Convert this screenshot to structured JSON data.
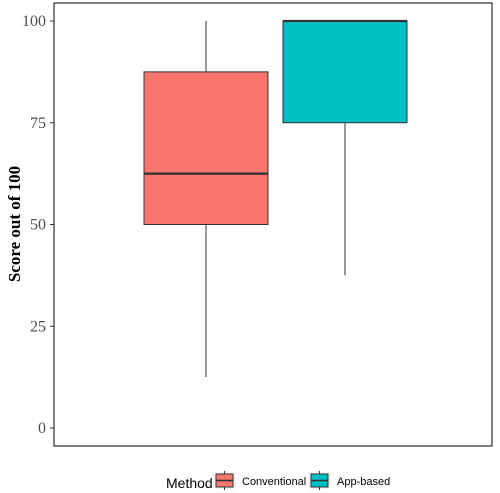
{
  "chart_data": {
    "type": "boxplot",
    "ylabel": "Score out of 100",
    "ylim": [
      0,
      100
    ],
    "yticks": [
      0,
      25,
      50,
      75,
      100
    ],
    "grid": false,
    "legend": {
      "title": "Method",
      "placement": "bottom"
    },
    "series": [
      {
        "name": "Conventional",
        "color": "#F8766D",
        "min": 12.5,
        "q1": 50,
        "median": 62.5,
        "q3": 87.5,
        "max": 100
      },
      {
        "name": "App-based",
        "color": "#00BFC4",
        "min": 37.5,
        "q1": 75,
        "median": 100,
        "q3": 100,
        "max": 100
      }
    ]
  }
}
